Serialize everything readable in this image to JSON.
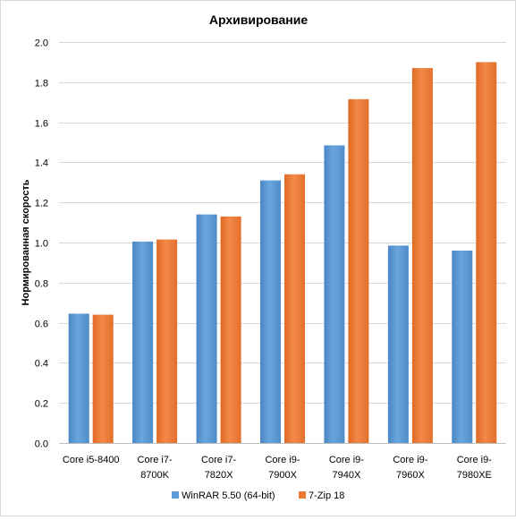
{
  "chart_data": {
    "type": "bar",
    "title": "Архивирование",
    "xlabel": "",
    "ylabel": "Нормированная скорость",
    "ylim": [
      0,
      2.0
    ],
    "yticks": [
      "0.0",
      "0.2",
      "0.4",
      "0.6",
      "0.8",
      "1.0",
      "1.2",
      "1.4",
      "1.6",
      "1.8",
      "2.0"
    ],
    "grid": true,
    "legend_position": "bottom",
    "categories": [
      [
        "Core i5-8400"
      ],
      [
        "Core i7-",
        "8700K"
      ],
      [
        "Core i7-",
        "7820X"
      ],
      [
        "Core i9-",
        "7900X"
      ],
      [
        "Core i9-",
        "7940X"
      ],
      [
        "Core i9-",
        "7960X"
      ],
      [
        "Core i9-",
        "7980XE"
      ]
    ],
    "series": [
      {
        "name": "WinRAR 5.50 (64-bit)",
        "color": "#5b9bd5",
        "values": [
          0.645,
          1.005,
          1.14,
          1.31,
          1.485,
          0.985,
          0.96
        ]
      },
      {
        "name": "7-Zip 18",
        "color": "#ed7d31",
        "values": [
          0.64,
          1.015,
          1.13,
          1.34,
          1.715,
          1.87,
          1.9
        ]
      }
    ]
  }
}
